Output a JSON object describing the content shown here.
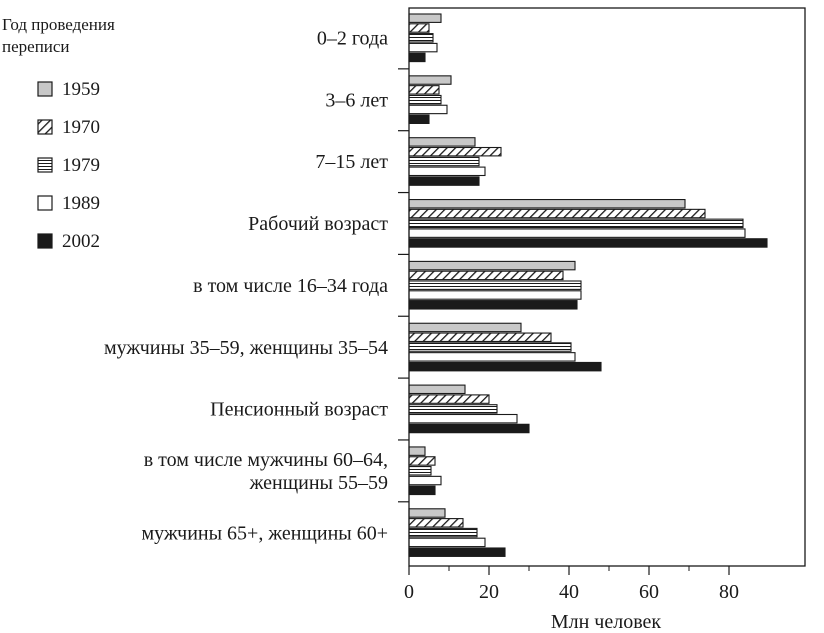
{
  "chart_data": {
    "type": "bar",
    "orientation": "horizontal",
    "categories": [
      [
        "0–2 года"
      ],
      [
        "3–6 лет"
      ],
      [
        "7–15 лет"
      ],
      [
        "Рабочий возраст"
      ],
      [
        "в том числе 16–34 года"
      ],
      [
        "мужчины 35–59, женщины 35–54"
      ],
      [
        "Пенсионный возраст"
      ],
      [
        "в том числе мужчины 60–64,",
        "женщины 55–59"
      ],
      [
        "мужчины 65+, женщины 60+"
      ]
    ],
    "series": [
      {
        "name": "1959",
        "values": [
          8,
          10.5,
          16.5,
          69,
          41.5,
          28,
          14,
          4,
          9
        ],
        "pattern": "light-gray"
      },
      {
        "name": "1970",
        "values": [
          5,
          7.5,
          23,
          74,
          38.5,
          35.5,
          20,
          6.5,
          13.5
        ],
        "pattern": "diagonal-hatch"
      },
      {
        "name": "1979",
        "values": [
          6,
          8,
          17.5,
          83.5,
          43,
          40.5,
          22,
          5.5,
          17
        ],
        "pattern": "horizontal-lines"
      },
      {
        "name": "1989",
        "values": [
          7,
          9.5,
          19,
          84,
          43,
          41.5,
          27,
          8,
          19
        ],
        "pattern": "white"
      },
      {
        "name": "2002",
        "values": [
          4,
          5,
          17.5,
          89.5,
          42,
          48,
          30,
          6.5,
          24
        ],
        "pattern": "black"
      }
    ],
    "xlabel": "Млн человек",
    "xlim": [
      0,
      90
    ],
    "xticks": [
      0,
      20,
      40,
      60,
      80
    ],
    "legend_title": "Год проведения переписи",
    "legend_title_lines": [
      "Год проведения",
      "переписи"
    ],
    "legend_position": "left",
    "grid": false,
    "colors": {
      "light-gray": "#c8c8c8",
      "black": "#1a1a1a",
      "white": "#ffffff",
      "ink": "#1a1a1a"
    }
  }
}
